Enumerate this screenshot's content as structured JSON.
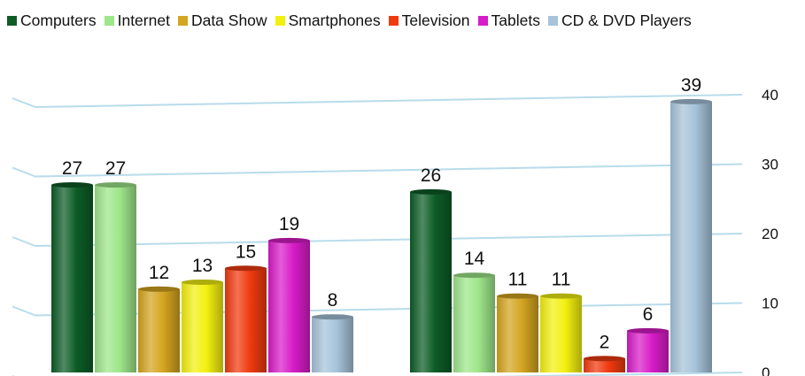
{
  "chart_data": {
    "type": "bar",
    "ylim": [
      0,
      40
    ],
    "yticks": [
      0,
      10,
      20,
      30,
      40
    ],
    "grid": true,
    "legend_position": "top",
    "axis_side": "right",
    "groups": [
      {
        "values": [
          27,
          27,
          12,
          13,
          15,
          19,
          8
        ]
      },
      {
        "values": [
          26,
          14,
          11,
          11,
          2,
          6,
          39
        ]
      }
    ],
    "series": [
      {
        "name": "Computers",
        "color": "#0d5c26"
      },
      {
        "name": "Internet",
        "color": "#9ee68a"
      },
      {
        "name": "Data Show",
        "color": "#d4a520"
      },
      {
        "name": "Smartphones",
        "color": "#f3f010"
      },
      {
        "name": "Television",
        "color": "#f03a10"
      },
      {
        "name": "Tablets",
        "color": "#d81cc8"
      },
      {
        "name": "CD & DVD Players",
        "color": "#a6c3da"
      }
    ],
    "gridline_color": "#b8dcea"
  }
}
